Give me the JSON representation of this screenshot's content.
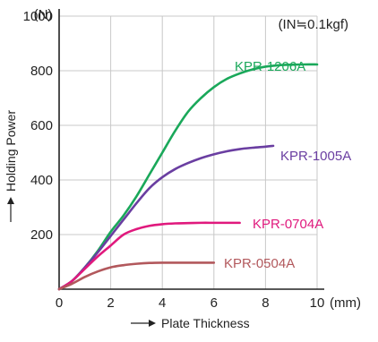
{
  "chart_data": {
    "type": "line",
    "title": "",
    "note": "(IN≒0.1kgf)",
    "xlabel": "Plate Thickness",
    "ylabel": "Holding Power",
    "x_unit": "(mm)",
    "y_unit": "(N)",
    "xlim": [
      0,
      10
    ],
    "ylim": [
      0,
      1000
    ],
    "x_ticks": [
      0,
      2,
      4,
      6,
      8,
      10
    ],
    "x_tick_labels": [
      "0",
      "2",
      "4",
      "6",
      "8",
      "10"
    ],
    "y_ticks": [
      200,
      400,
      600,
      800,
      1000
    ],
    "y_tick_labels": [
      "200",
      "400",
      "600",
      "800",
      "1000"
    ],
    "grid": true,
    "legend": "inline labels at line ends",
    "series": [
      {
        "name": "KPR-1206A",
        "color": "#1aa85a",
        "x": [
          0,
          0.5,
          1,
          1.5,
          2,
          2.5,
          3,
          3.5,
          4,
          4.5,
          5,
          5.5,
          6,
          6.5,
          7,
          7.5,
          8,
          8.5,
          9,
          9.5,
          10
        ],
        "y": [
          0,
          30,
          80,
          140,
          210,
          270,
          340,
          420,
          500,
          580,
          650,
          700,
          740,
          770,
          790,
          805,
          815,
          820,
          822,
          823,
          823
        ]
      },
      {
        "name": "KPR-1005A",
        "color": "#6a3ea1",
        "x": [
          0,
          0.5,
          1,
          1.5,
          2,
          2.5,
          3,
          3.5,
          4,
          4.5,
          5,
          5.5,
          6,
          6.5,
          7,
          7.5,
          8,
          8.3
        ],
        "y": [
          0,
          30,
          80,
          135,
          195,
          255,
          315,
          370,
          410,
          440,
          462,
          480,
          494,
          505,
          513,
          518,
          522,
          525
        ]
      },
      {
        "name": "KPR-0704A",
        "color": "#e0197d",
        "x": [
          0,
          0.5,
          1,
          1.5,
          2,
          2.5,
          3,
          3.5,
          4,
          4.5,
          5,
          5.5,
          6,
          6.5,
          7
        ],
        "y": [
          0,
          30,
          75,
          120,
          160,
          200,
          220,
          232,
          238,
          241,
          242,
          243,
          243,
          243,
          243
        ]
      },
      {
        "name": "KPR-0504A",
        "color": "#b2585c",
        "x": [
          0,
          0.5,
          1,
          1.5,
          2,
          2.5,
          3,
          3.5,
          4,
          4.5,
          5,
          5.5,
          6
        ],
        "y": [
          0,
          20,
          45,
          65,
          80,
          88,
          93,
          96,
          97,
          97,
          97,
          97,
          97
        ]
      }
    ]
  }
}
